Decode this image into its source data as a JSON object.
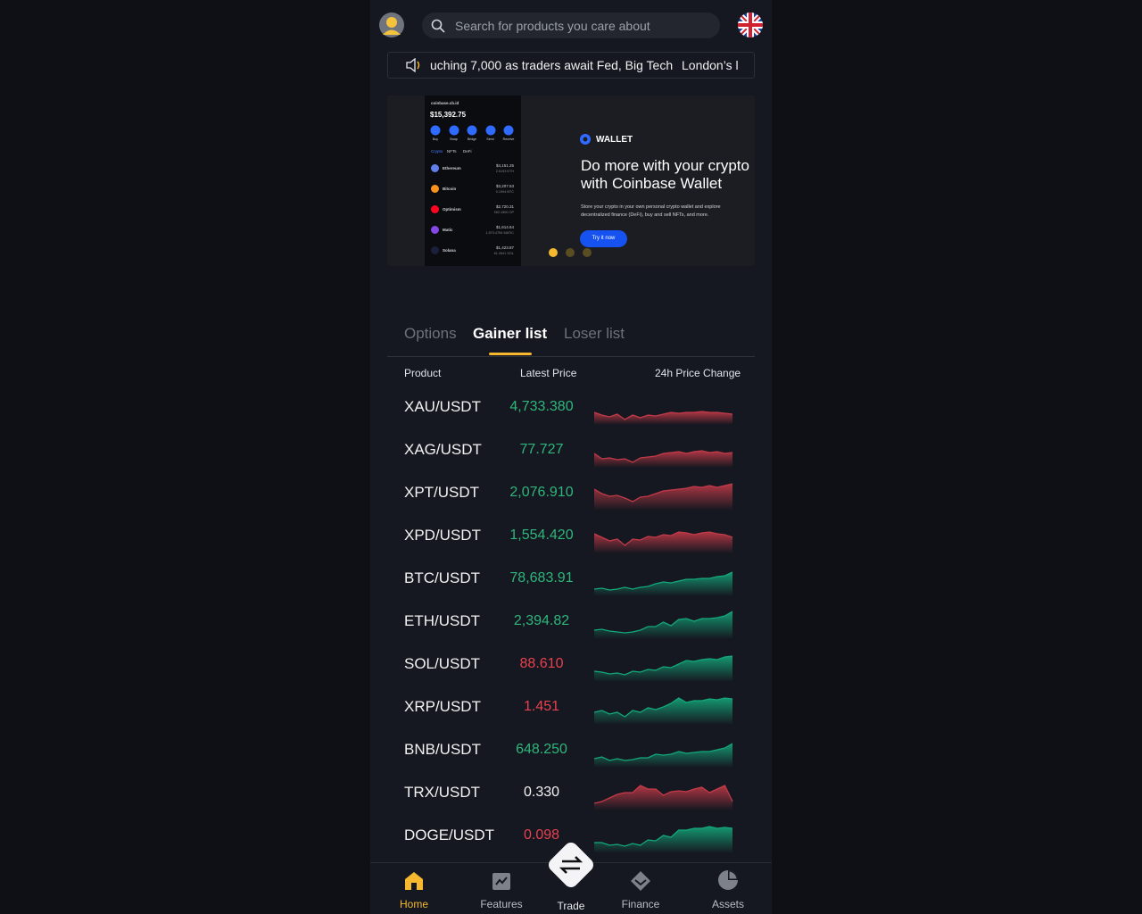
{
  "header": {
    "search_placeholder": "Search for products you care about"
  },
  "news": [
    "uching 7,000 as traders await Fed, Big Tech",
    "London’s l"
  ],
  "banner": {
    "label": "WALLET",
    "headline": "Do more with your crypto\nwith Coinbase Wallet",
    "description": "Store your crypto in your own personal crypto wallet and explore decentralized finance (DeFi), buy and sell NFTs, and more.",
    "button": "Try it now",
    "phone": {
      "account": "coinbase.cb.id",
      "balance": "$15,392.75",
      "actions": [
        "Buy",
        "Swap",
        "Bridge",
        "Send",
        "Receive"
      ],
      "tabs": [
        "Crypto",
        "NFTs",
        "DeFi"
      ],
      "assets": [
        {
          "name": "Ethereum",
          "value": "$4,151.25",
          "amount": "2.5193 ETH",
          "color": "#627eea"
        },
        {
          "name": "Bitcoin",
          "value": "$3,207.53",
          "amount": "0.1994 BTC",
          "color": "#f7931a"
        },
        {
          "name": "Optimism",
          "value": "$2,720.31",
          "amount": "952.1590 OP",
          "color": "#ff0420"
        },
        {
          "name": "Matic",
          "value": "$1,614.64",
          "amount": "1,573.4754 MATIC",
          "color": "#8247e5"
        },
        {
          "name": "Solana",
          "value": "$1,423.87",
          "amount": "61.2641 SOL",
          "color": "#1b1f3a"
        }
      ]
    }
  },
  "tabs": [
    "Options",
    "Gainer list",
    "Loser list"
  ],
  "table": {
    "columns": [
      "Product",
      "Latest Price",
      "24h Price Change"
    ],
    "rows": [
      {
        "product": "XAU/USDT",
        "price": "4,733.380",
        "price_color": "#2fb67c",
        "chart_color": "#c23a48"
      },
      {
        "product": "XAG/USDT",
        "price": "77.727",
        "price_color": "#2fb67c",
        "chart_color": "#c23a48"
      },
      {
        "product": "XPT/USDT",
        "price": "2,076.910",
        "price_color": "#2fb67c",
        "chart_color": "#c23a48"
      },
      {
        "product": "XPD/USDT",
        "price": "1,554.420",
        "price_color": "#2fb67c",
        "chart_color": "#c23a48"
      },
      {
        "product": "BTC/USDT",
        "price": "78,683.91",
        "price_color": "#2fb67c",
        "chart_color": "#14a77a"
      },
      {
        "product": "ETH/USDT",
        "price": "2,394.82",
        "price_color": "#2fb67c",
        "chart_color": "#14a77a"
      },
      {
        "product": "SOL/USDT",
        "price": "88.610",
        "price_color": "#e8414f",
        "chart_color": "#14a77a"
      },
      {
        "product": "XRP/USDT",
        "price": "1.451",
        "price_color": "#e8414f",
        "chart_color": "#14a77a"
      },
      {
        "product": "BNB/USDT",
        "price": "648.250",
        "price_color": "#2fb67c",
        "chart_color": "#14a77a"
      },
      {
        "product": "TRX/USDT",
        "price": "0.330",
        "price_color": "#f2f2f2",
        "chart_color": "#c23a48"
      },
      {
        "product": "DOGE/USDT",
        "price": "0.098",
        "price_color": "#e8414f",
        "chart_color": "#14a77a"
      }
    ]
  },
  "nav": [
    "Home",
    "Features",
    "Trade",
    "Finance",
    "Assets"
  ]
}
